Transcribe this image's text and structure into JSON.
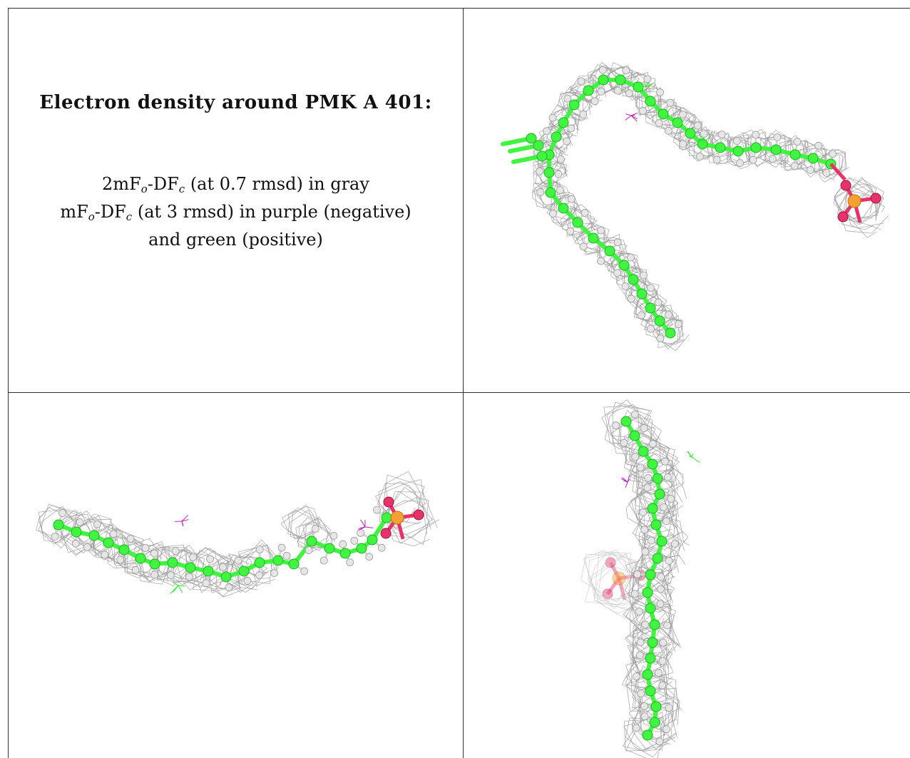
{
  "caption": {
    "title": "Electron density around PMK A 401:",
    "line1": {
      "pre": "2mF",
      "sub1": "o",
      "mid": "-DF",
      "sub2": "c",
      "post": " (at 0.7 rmsd) in gray"
    },
    "line2": {
      "pre": "mF",
      "sub1": "o",
      "mid": "-DF",
      "sub2": "c",
      "post": " (at 3 rmsd) in purple (negative)"
    },
    "line3": "and green (positive)"
  },
  "colors": {
    "carbon": "#3ff53f",
    "hydrogen": "#d6d6d6",
    "phosphorus": "#f5a033",
    "oxygen": "#e8336a",
    "mesh_gray": "#9a9a9a",
    "mesh_negative": "#c020c0",
    "mesh_positive": "#30e830",
    "grid_line": "#333333"
  }
}
